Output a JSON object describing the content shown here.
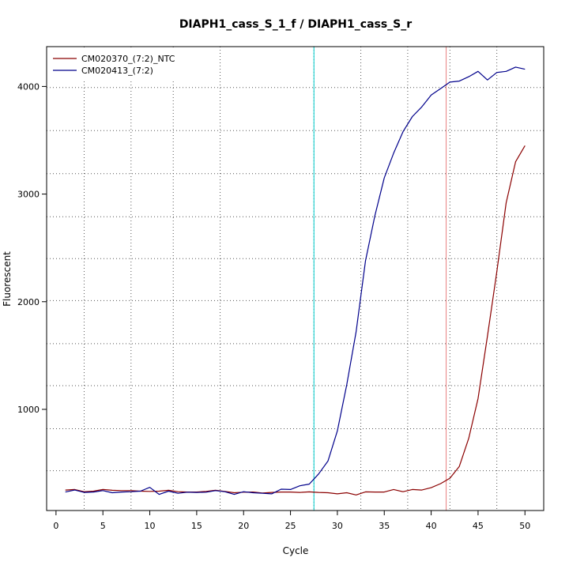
{
  "chart_data": {
    "type": "line",
    "title": "DIAPH1_cass_S_1_f / DIAPH1_cass_S_r",
    "xlabel": "Cycle",
    "ylabel": "Fluorescent",
    "xlim": [
      -1,
      52
    ],
    "ylim": [
      60,
      4370
    ],
    "xticks": [
      "0",
      "5",
      "10",
      "15",
      "20",
      "25",
      "30",
      "35",
      "40",
      "45",
      "50"
    ],
    "yticks": [
      "1000",
      "2000",
      "3000",
      "4000"
    ],
    "grid": true,
    "legend_position": "top-left",
    "x_dotted_grid": [
      3,
      8,
      12.5,
      17.5,
      27.5,
      32.5,
      37.5,
      42,
      47
    ],
    "y_dotted_grid": [
      430,
      820,
      1220,
      1610,
      2010,
      2400,
      2790,
      3190,
      3590,
      3990
    ],
    "threshold_lines": [
      {
        "x": 27.5,
        "color": "#00cccc"
      },
      {
        "x": 41.6,
        "color": "#e88080"
      }
    ],
    "series": [
      {
        "name": "CM020370_(7:2)_NTC",
        "color": "#8b0000",
        "x": [
          1,
          2,
          3,
          4,
          5,
          6,
          7,
          8,
          9,
          10,
          11,
          12,
          13,
          14,
          15,
          16,
          17,
          18,
          19,
          20,
          21,
          22,
          23,
          24,
          25,
          26,
          27,
          28,
          29,
          30,
          31,
          32,
          33,
          34,
          35,
          36,
          37,
          38,
          39,
          40,
          41,
          42,
          43,
          44,
          45,
          46,
          47,
          48,
          49,
          50
        ],
        "y": [
          250,
          255,
          235,
          240,
          255,
          248,
          245,
          245,
          240,
          238,
          240,
          248,
          235,
          232,
          232,
          238,
          248,
          238,
          225,
          230,
          232,
          222,
          228,
          232,
          232,
          228,
          233,
          228,
          225,
          215,
          225,
          205,
          233,
          232,
          232,
          255,
          235,
          255,
          250,
          272,
          310,
          360,
          470,
          730,
          1100,
          1680,
          2280,
          2920,
          3300,
          3450
        ]
      },
      {
        "name": "CM020413_(7:2)",
        "color": "#00008b",
        "x": [
          1,
          2,
          3,
          4,
          5,
          6,
          7,
          8,
          9,
          10,
          11,
          12,
          13,
          14,
          15,
          16,
          17,
          18,
          19,
          20,
          21,
          22,
          23,
          24,
          25,
          26,
          27,
          28,
          29,
          30,
          31,
          32,
          33,
          34,
          35,
          36,
          37,
          38,
          39,
          40,
          41,
          42,
          43,
          44,
          45,
          46,
          47,
          48,
          49,
          50
        ],
        "y": [
          232,
          250,
          228,
          232,
          245,
          225,
          232,
          235,
          240,
          275,
          210,
          240,
          220,
          230,
          228,
          230,
          245,
          235,
          210,
          235,
          225,
          220,
          215,
          258,
          255,
          290,
          305,
          400,
          520,
          800,
          1230,
          1720,
          2380,
          2800,
          3150,
          3380,
          3580,
          3720,
          3810,
          3920,
          3980,
          4040,
          4050,
          4090,
          4140,
          4060,
          4130,
          4140,
          4180,
          4160
        ]
      }
    ]
  }
}
